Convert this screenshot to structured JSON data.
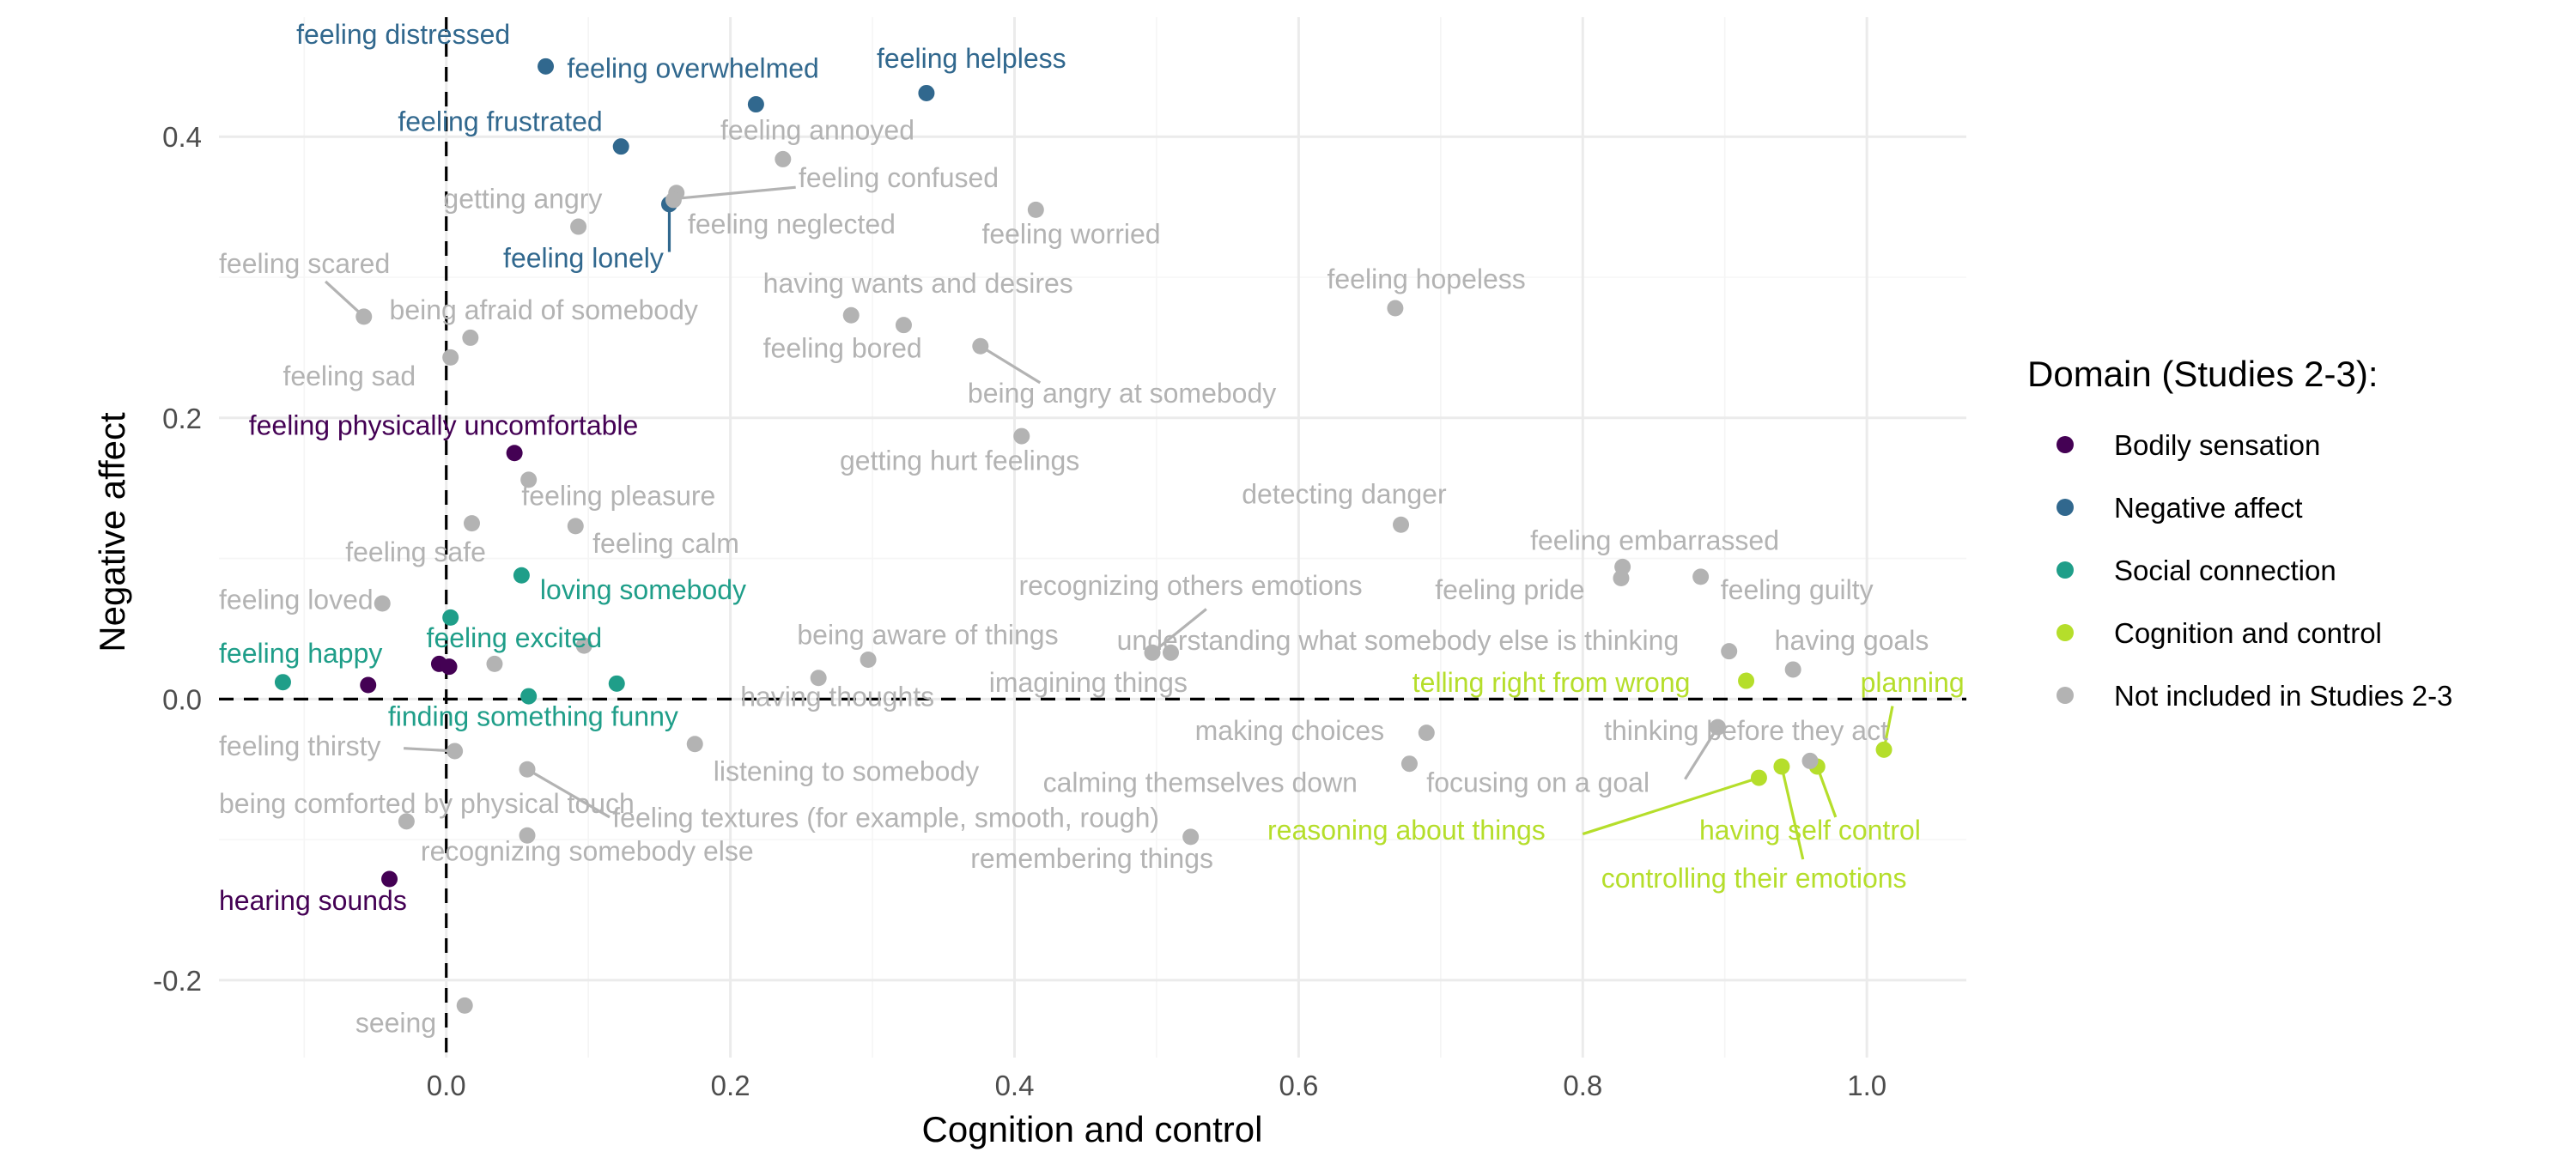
{
  "chart_data": {
    "type": "scatter",
    "xlabel": "Cognition and control",
    "ylabel": "Negative affect",
    "xlim": [
      -0.16,
      1.07
    ],
    "ylim": [
      -0.255,
      0.485
    ],
    "x_ticks": [
      0.0,
      0.2,
      0.4,
      0.6,
      0.8,
      1.0
    ],
    "x_tick_labels": [
      "0.0",
      "0.2",
      "0.4",
      "0.6",
      "0.8",
      "1.0"
    ],
    "y_ticks": [
      -0.2,
      0.0,
      0.2,
      0.4
    ],
    "y_tick_labels": [
      "-0.2",
      "0.0",
      "0.2",
      "0.4"
    ],
    "grid": true,
    "reference_lines": {
      "x": 0,
      "y": 0,
      "style": "dashed"
    },
    "legend": {
      "title": "Domain (Studies 2-3):",
      "placement": "right",
      "entries": [
        {
          "label": "Bodily sensation",
          "color": "#440154"
        },
        {
          "label": "Negative affect",
          "color": "#31688e"
        },
        {
          "label": "Social connection",
          "color": "#1f9e89"
        },
        {
          "label": "Cognition and control",
          "color": "#b5de2b"
        },
        {
          "label": "Not included in Studies 2-3",
          "color": "#b3b3b3"
        }
      ]
    },
    "series": [
      {
        "name": "Bodily sensation",
        "color": "#440154",
        "points": [
          {
            "label": "feeling physically uncomfortable",
            "x": 0.048,
            "y": 0.175
          },
          {
            "label": "hearing sounds",
            "x": -0.04,
            "y": -0.128
          },
          {
            "label": "",
            "x": -0.055,
            "y": 0.01
          },
          {
            "label": "",
            "x": -0.005,
            "y": 0.025
          },
          {
            "label": "",
            "x": 0.002,
            "y": 0.023
          }
        ]
      },
      {
        "name": "Negative affect",
        "color": "#31688e",
        "points": [
          {
            "label": "feeling distressed",
            "x": 0.07,
            "y": 0.45
          },
          {
            "label": "feeling overwhelmed",
            "x": 0.218,
            "y": 0.423
          },
          {
            "label": "feeling helpless",
            "x": 0.338,
            "y": 0.431
          },
          {
            "label": "feeling frustrated",
            "x": 0.123,
            "y": 0.393
          },
          {
            "label": "feeling lonely",
            "x": 0.157,
            "y": 0.352
          }
        ]
      },
      {
        "name": "Social connection",
        "color": "#1f9e89",
        "points": [
          {
            "label": "loving somebody",
            "x": 0.053,
            "y": 0.088
          },
          {
            "label": "feeling excited",
            "x": 0.003,
            "y": 0.058
          },
          {
            "label": "feeling happy",
            "x": -0.115,
            "y": 0.012
          },
          {
            "label": "finding something funny",
            "x": 0.058,
            "y": 0.002
          },
          {
            "label": "",
            "x": 0.12,
            "y": 0.011
          }
        ]
      },
      {
        "name": "Cognition and control",
        "color": "#b5de2b",
        "points": [
          {
            "label": "telling right from wrong",
            "x": 0.915,
            "y": 0.013
          },
          {
            "label": "planning",
            "x": 1.012,
            "y": -0.036
          },
          {
            "label": "reasoning about things",
            "x": 0.924,
            "y": -0.056
          },
          {
            "label": "controlling their emotions",
            "x": 0.94,
            "y": -0.048
          },
          {
            "label": "having self control",
            "x": 0.965,
            "y": -0.048
          }
        ]
      },
      {
        "name": "Not included in Studies 2-3",
        "color": "#b3b3b3",
        "points": [
          {
            "label": "feeling annoyed",
            "x": 0.237,
            "y": 0.384
          },
          {
            "label": "feeling confused",
            "x": 0.162,
            "y": 0.36
          },
          {
            "label": "getting angry",
            "x": 0.093,
            "y": 0.336
          },
          {
            "label": "feeling neglected",
            "x": 0.16,
            "y": 0.355
          },
          {
            "label": "feeling worried",
            "x": 0.415,
            "y": 0.348
          },
          {
            "label": "feeling scared",
            "x": -0.058,
            "y": 0.272
          },
          {
            "label": "being afraid of somebody",
            "x": 0.017,
            "y": 0.257
          },
          {
            "label": "having wants and desires",
            "x": 0.285,
            "y": 0.273
          },
          {
            "label": "feeling bored",
            "x": 0.322,
            "y": 0.266
          },
          {
            "label": "feeling hopeless",
            "x": 0.668,
            "y": 0.278
          },
          {
            "label": "feeling sad",
            "x": 0.003,
            "y": 0.243
          },
          {
            "label": "being angry at somebody",
            "x": 0.376,
            "y": 0.251
          },
          {
            "label": "getting hurt feelings",
            "x": 0.405,
            "y": 0.187
          },
          {
            "label": "feeling pleasure",
            "x": 0.058,
            "y": 0.156
          },
          {
            "label": "feeling safe",
            "x": 0.018,
            "y": 0.125
          },
          {
            "label": "feeling calm",
            "x": 0.091,
            "y": 0.123
          },
          {
            "label": "detecting danger",
            "x": 0.672,
            "y": 0.124
          },
          {
            "label": "feeling embarrassed",
            "x": 0.828,
            "y": 0.094
          },
          {
            "label": "feeling pride",
            "x": 0.827,
            "y": 0.086
          },
          {
            "label": "feeling guilty",
            "x": 0.883,
            "y": 0.087
          },
          {
            "label": "feeling loved",
            "x": -0.045,
            "y": 0.068
          },
          {
            "label": "recognizing others emotions",
            "x": 0.497,
            "y": 0.033
          },
          {
            "label": "understanding what somebody else is thinking",
            "x": 0.51,
            "y": 0.033
          },
          {
            "label": "being aware of things",
            "x": 0.297,
            "y": 0.028
          },
          {
            "label": "having thoughts",
            "x": 0.262,
            "y": 0.015
          },
          {
            "label": "imagining things",
            "x": 0.097,
            "y": 0.038
          },
          {
            "label": "having goals",
            "x": 0.948,
            "y": 0.021
          },
          {
            "label": "",
            "x": 0.903,
            "y": 0.034
          },
          {
            "label": "",
            "x": 0.034,
            "y": 0.025
          },
          {
            "label": "making choices",
            "x": 0.69,
            "y": -0.024
          },
          {
            "label": "thinking before they act",
            "x": 0.895,
            "y": -0.02
          },
          {
            "label": "focusing on a goal",
            "x": 0.678,
            "y": -0.046
          },
          {
            "label": "calming themselves down",
            "x": 0.96,
            "y": -0.044
          },
          {
            "label": "listening to somebody",
            "x": 0.175,
            "y": -0.032
          },
          {
            "label": "feeling thirsty",
            "x": 0.006,
            "y": -0.037
          },
          {
            "label": "feeling textures (for example, smooth, rough)",
            "x": 0.057,
            "y": -0.05
          },
          {
            "label": "being comforted by physical touch",
            "x": -0.028,
            "y": -0.087
          },
          {
            "label": "recognizing somebody else",
            "x": 0.057,
            "y": -0.097
          },
          {
            "label": "remembering things",
            "x": 0.524,
            "y": -0.098
          },
          {
            "label": "seeing",
            "x": 0.013,
            "y": -0.218
          }
        ]
      }
    ],
    "labels": [
      {
        "text": "feeling distressed",
        "color": "#31688e",
        "tx": 0.045,
        "ty": 0.466,
        "anchor": "end"
      },
      {
        "text": "feeling overwhelmed",
        "color": "#31688e",
        "tx": 0.085,
        "ty": 0.442,
        "anchor": "start"
      },
      {
        "text": "feeling helpless",
        "color": "#31688e",
        "tx": 0.303,
        "ty": 0.449,
        "anchor": "start"
      },
      {
        "text": "feeling frustrated",
        "color": "#31688e",
        "tx": 0.11,
        "ty": 0.404,
        "anchor": "end"
      },
      {
        "text": "feeling lonely",
        "color": "#31688e",
        "tx": 0.153,
        "ty": 0.307,
        "anchor": "end",
        "lx": 0.157,
        "ly": 0.352,
        "ex": 0.157,
        "ey": 0.318
      },
      {
        "text": "feeling annoyed",
        "color": "#b3b3b3",
        "tx": 0.193,
        "ty": 0.398,
        "anchor": "start"
      },
      {
        "text": "feeling confused",
        "color": "#b3b3b3",
        "tx": 0.248,
        "ty": 0.364,
        "anchor": "start",
        "lx": 0.162,
        "ly": 0.356,
        "ex": 0.246,
        "ey": 0.364
      },
      {
        "text": "getting angry",
        "color": "#b3b3b3",
        "tx": -0.002,
        "ty": 0.349,
        "anchor": "start"
      },
      {
        "text": "feeling neglected",
        "color": "#b3b3b3",
        "tx": 0.17,
        "ty": 0.331,
        "anchor": "start"
      },
      {
        "text": "feeling worried",
        "color": "#b3b3b3",
        "tx": 0.377,
        "ty": 0.324,
        "anchor": "start"
      },
      {
        "text": "feeling scared",
        "color": "#b3b3b3",
        "tx": -0.16,
        "ty": 0.303,
        "anchor": "start",
        "lx": -0.058,
        "ly": 0.272,
        "ex": -0.085,
        "ey": 0.297
      },
      {
        "text": "being afraid of somebody",
        "color": "#b3b3b3",
        "tx": -0.04,
        "ty": 0.27,
        "anchor": "start"
      },
      {
        "text": "having wants and desires",
        "color": "#b3b3b3",
        "tx": 0.223,
        "ty": 0.289,
        "anchor": "start"
      },
      {
        "text": "feeling bored",
        "color": "#b3b3b3",
        "tx": 0.223,
        "ty": 0.243,
        "anchor": "start"
      },
      {
        "text": "feeling hopeless",
        "color": "#b3b3b3",
        "tx": 0.62,
        "ty": 0.292,
        "anchor": "start"
      },
      {
        "text": "feeling sad",
        "color": "#b3b3b3",
        "tx": -0.115,
        "ty": 0.223,
        "anchor": "start"
      },
      {
        "text": "being angry at somebody",
        "color": "#b3b3b3",
        "tx": 0.367,
        "ty": 0.211,
        "anchor": "start",
        "lx": 0.376,
        "ly": 0.251,
        "ex": 0.418,
        "ey": 0.225
      },
      {
        "text": "feeling physically uncomfortable",
        "color": "#440154",
        "tx": -0.139,
        "ty": 0.188,
        "anchor": "start"
      },
      {
        "text": "getting hurt feelings",
        "color": "#b3b3b3",
        "tx": 0.277,
        "ty": 0.163,
        "anchor": "start"
      },
      {
        "text": "feeling pleasure",
        "color": "#b3b3b3",
        "tx": 0.053,
        "ty": 0.138,
        "anchor": "start"
      },
      {
        "text": "detecting danger",
        "color": "#b3b3b3",
        "tx": 0.56,
        "ty": 0.139,
        "anchor": "start"
      },
      {
        "text": "feeling calm",
        "color": "#b3b3b3",
        "tx": 0.103,
        "ty": 0.104,
        "anchor": "start"
      },
      {
        "text": "feeling safe",
        "color": "#b3b3b3",
        "tx": -0.071,
        "ty": 0.098,
        "anchor": "start"
      },
      {
        "text": "feeling embarrassed",
        "color": "#b3b3b3",
        "tx": 0.763,
        "ty": 0.106,
        "anchor": "start"
      },
      {
        "text": "loving somebody",
        "color": "#1f9e89",
        "tx": 0.066,
        "ty": 0.071,
        "anchor": "start"
      },
      {
        "text": "recognizing others emotions",
        "color": "#b3b3b3",
        "tx": 0.403,
        "ty": 0.074,
        "anchor": "start",
        "lx": 0.497,
        "ly": 0.033,
        "ex": 0.535,
        "ey": 0.064
      },
      {
        "text": "feeling pride",
        "color": "#b3b3b3",
        "tx": 0.696,
        "ty": 0.071,
        "anchor": "start"
      },
      {
        "text": "feeling guilty",
        "color": "#b3b3b3",
        "tx": 0.897,
        "ty": 0.071,
        "anchor": "start"
      },
      {
        "text": "feeling loved",
        "color": "#b3b3b3",
        "tx": -0.16,
        "ty": 0.064,
        "anchor": "start"
      },
      {
        "text": "feeling excited",
        "color": "#1f9e89",
        "tx": -0.014,
        "ty": 0.037,
        "anchor": "start"
      },
      {
        "text": "being aware of things",
        "color": "#b3b3b3",
        "tx": 0.247,
        "ty": 0.039,
        "anchor": "start"
      },
      {
        "text": "understanding what somebody else is thinking",
        "color": "#b3b3b3",
        "tx": 0.472,
        "ty": 0.035,
        "anchor": "start"
      },
      {
        "text": "having goals",
        "color": "#b3b3b3",
        "tx": 0.935,
        "ty": 0.035,
        "anchor": "start"
      },
      {
        "text": "feeling happy",
        "color": "#1f9e89",
        "tx": -0.16,
        "ty": 0.026,
        "anchor": "start"
      },
      {
        "text": "imagining things",
        "color": "#b3b3b3",
        "tx": 0.382,
        "ty": 0.005,
        "anchor": "start"
      },
      {
        "text": "telling right from wrong",
        "color": "#b5de2b",
        "tx": 0.68,
        "ty": 0.005,
        "anchor": "start"
      },
      {
        "text": "planning",
        "color": "#b5de2b",
        "tx": 1.032,
        "ty": 0.005,
        "anchor": "middle",
        "lx": 1.012,
        "ly": -0.036,
        "ex": 1.018,
        "ey": -0.005
      },
      {
        "text": "having thoughts",
        "color": "#b3b3b3",
        "tx": 0.207,
        "ty": -0.005,
        "anchor": "start"
      },
      {
        "text": "finding something funny",
        "color": "#1f9e89",
        "tx": -0.041,
        "ty": -0.019,
        "anchor": "start"
      },
      {
        "text": "making choices",
        "color": "#b3b3b3",
        "tx": 0.527,
        "ty": -0.029,
        "anchor": "start"
      },
      {
        "text": "thinking before they act",
        "color": "#b3b3b3",
        "tx": 0.815,
        "ty": -0.029,
        "anchor": "start"
      },
      {
        "text": "feeling thirsty",
        "color": "#b3b3b3",
        "tx": -0.16,
        "ty": -0.04,
        "anchor": "start",
        "lx": 0.006,
        "ly": -0.037,
        "ex": -0.03,
        "ey": -0.035
      },
      {
        "text": "listening to somebody",
        "color": "#b3b3b3",
        "tx": 0.188,
        "ty": -0.058,
        "anchor": "start"
      },
      {
        "text": "calming themselves down",
        "color": "#b3b3b3",
        "tx": 0.42,
        "ty": -0.066,
        "anchor": "start"
      },
      {
        "text": "focusing on a goal",
        "color": "#b3b3b3",
        "tx": 0.69,
        "ty": -0.066,
        "anchor": "start",
        "lx": 0.895,
        "ly": -0.02,
        "ex": 0.872,
        "ey": -0.057
      },
      {
        "text": "being comforted by physical touch",
        "color": "#b3b3b3",
        "tx": -0.16,
        "ty": -0.081,
        "anchor": "start"
      },
      {
        "text": "feeling textures (for example, smooth, rough)",
        "color": "#b3b3b3",
        "tx": 0.117,
        "ty": -0.091,
        "anchor": "start",
        "lx": 0.057,
        "ly": -0.05,
        "ex": 0.115,
        "ey": -0.084
      },
      {
        "text": "reasoning about things",
        "color": "#b5de2b",
        "tx": 0.578,
        "ty": -0.1,
        "anchor": "start",
        "lx": 0.924,
        "ly": -0.056,
        "ex": 0.8,
        "ey": -0.096
      },
      {
        "text": "having self control",
        "color": "#b5de2b",
        "tx": 0.882,
        "ty": -0.1,
        "anchor": "start",
        "lx": 0.965,
        "ly": -0.048,
        "ex": 0.978,
        "ey": -0.084
      },
      {
        "text": "recognizing somebody else",
        "color": "#b3b3b3",
        "tx": -0.018,
        "ty": -0.115,
        "anchor": "start"
      },
      {
        "text": "remembering things",
        "color": "#b3b3b3",
        "tx": 0.369,
        "ty": -0.12,
        "anchor": "start"
      },
      {
        "text": "controlling their emotions",
        "color": "#b5de2b",
        "tx": 0.813,
        "ty": -0.134,
        "anchor": "start",
        "lx": 0.94,
        "ly": -0.048,
        "ex": 0.955,
        "ey": -0.114
      },
      {
        "text": "hearing sounds",
        "color": "#440154",
        "tx": -0.16,
        "ty": -0.15,
        "anchor": "start"
      },
      {
        "text": "seeing",
        "color": "#b3b3b3",
        "tx": -0.064,
        "ty": -0.237,
        "anchor": "start"
      }
    ]
  }
}
